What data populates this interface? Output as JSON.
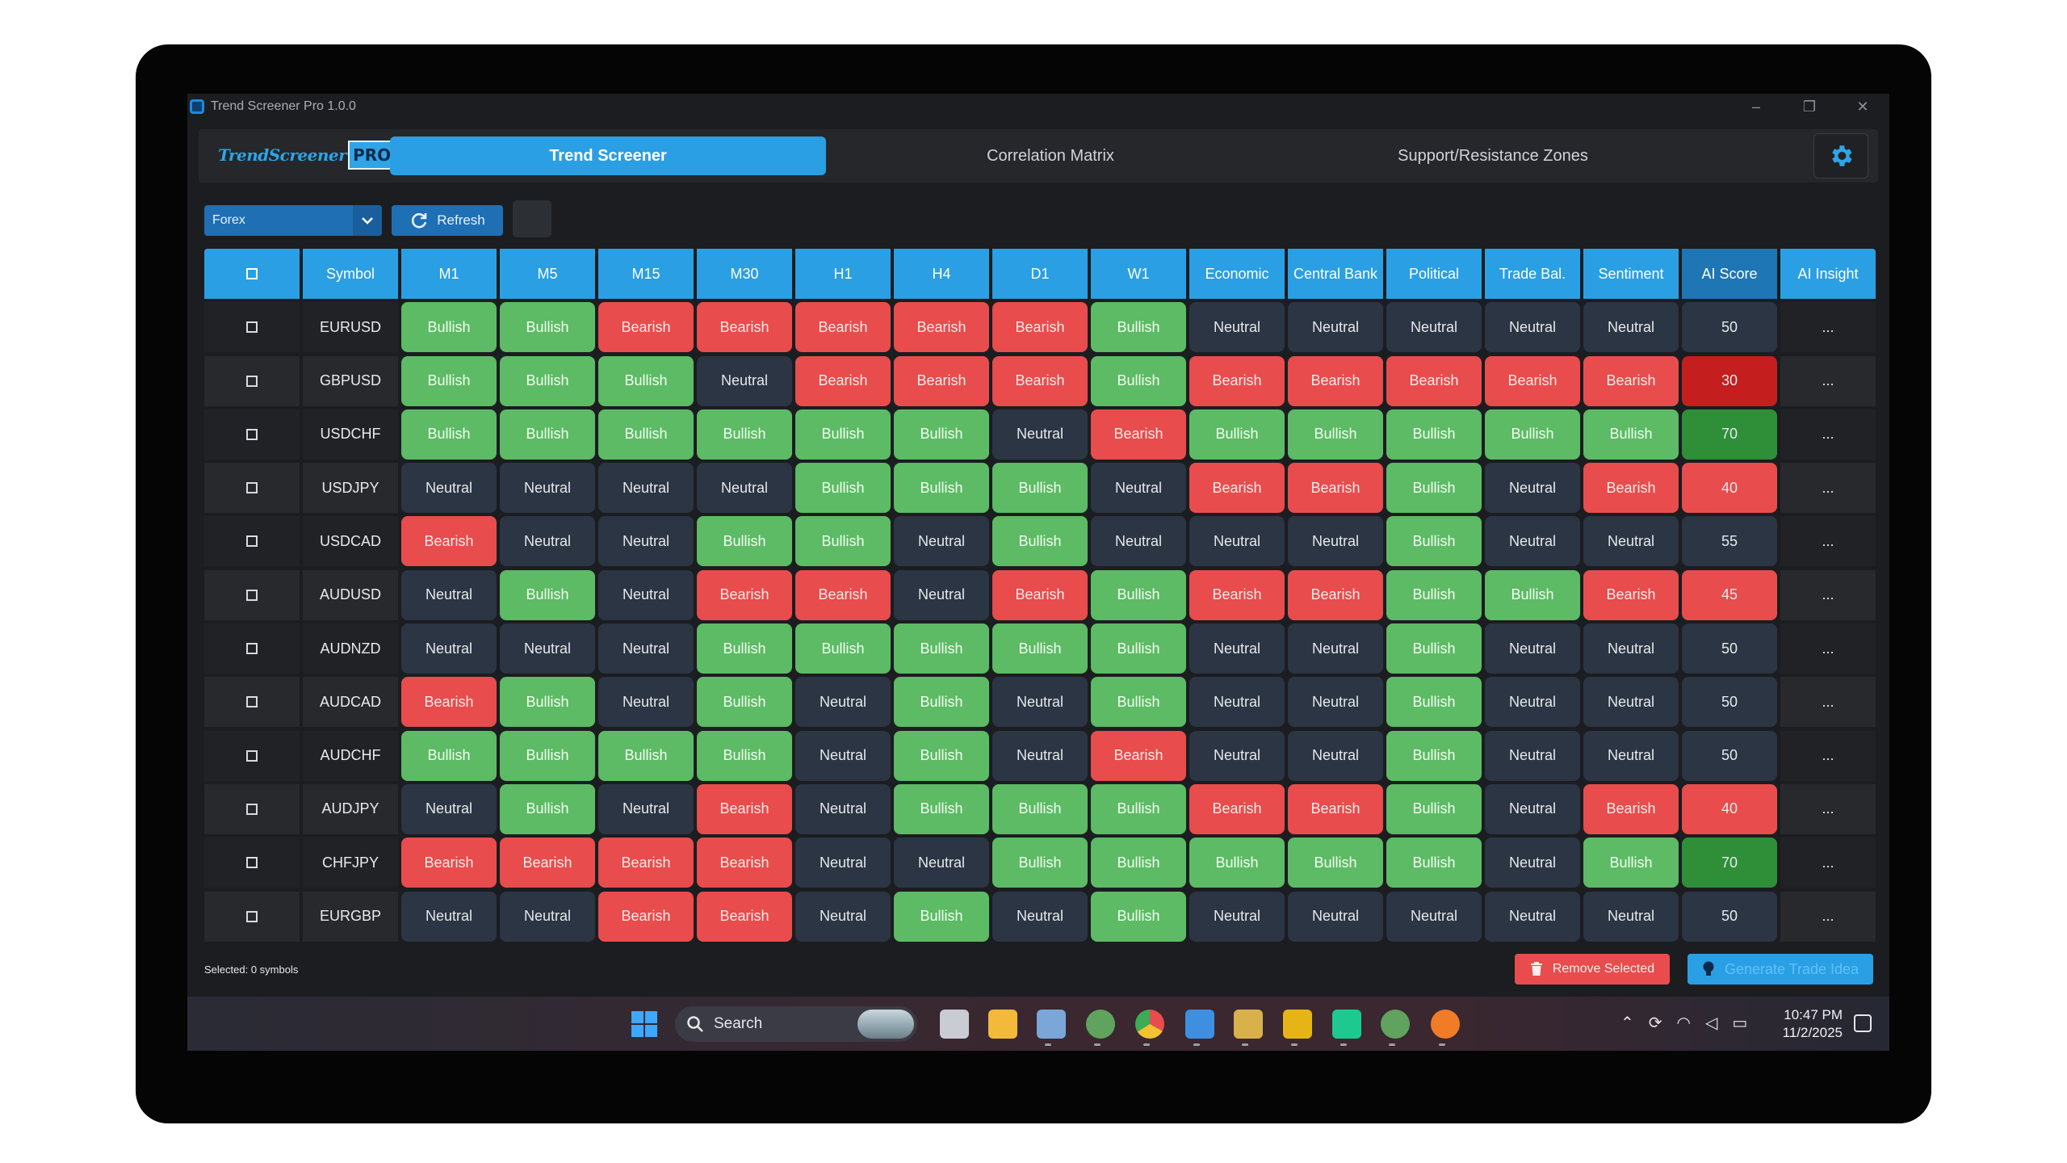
{
  "window": {
    "title": "Trend Screener Pro 1.0.0",
    "controls": {
      "minimize": "–",
      "maximize": "❐",
      "close": "✕"
    }
  },
  "header": {
    "logo_text": "TrendScreener",
    "logo_badge": "PRO",
    "tabs": [
      {
        "label": "Trend Screener",
        "active": true
      },
      {
        "label": "Correlation Matrix",
        "active": false
      },
      {
        "label": "Support/Resistance Zones",
        "active": false
      }
    ],
    "settings_icon": "gear-icon"
  },
  "toolbar": {
    "market_select": "Forex",
    "refresh_label": "Refresh"
  },
  "table": {
    "headers": [
      "Symbol",
      "M1",
      "M5",
      "M15",
      "M30",
      "H1",
      "H4",
      "D1",
      "W1",
      "Economic",
      "Central Bank",
      "Political",
      "Trade Bal.",
      "Sentiment",
      "AI Score",
      "AI Insight"
    ],
    "rows": [
      {
        "symbol": "EURUSD",
        "signals": [
          "Bullish",
          "Bullish",
          "Bearish",
          "Bearish",
          "Bearish",
          "Bearish",
          "Bearish",
          "Bullish",
          "Neutral",
          "Neutral",
          "Neutral",
          "Neutral",
          "Neutral"
        ],
        "score": "50",
        "insight": "..."
      },
      {
        "symbol": "GBPUSD",
        "signals": [
          "Bullish",
          "Bullish",
          "Bullish",
          "Neutral",
          "Bearish",
          "Bearish",
          "Bearish",
          "Bullish",
          "Bearish",
          "Bearish",
          "Bearish",
          "Bearish",
          "Bearish"
        ],
        "score": "30",
        "insight": "..."
      },
      {
        "symbol": "USDCHF",
        "signals": [
          "Bullish",
          "Bullish",
          "Bullish",
          "Bullish",
          "Bullish",
          "Bullish",
          "Neutral",
          "Bearish",
          "Bullish",
          "Bullish",
          "Bullish",
          "Bullish",
          "Bullish"
        ],
        "score": "70",
        "insight": "..."
      },
      {
        "symbol": "USDJPY",
        "signals": [
          "Neutral",
          "Neutral",
          "Neutral",
          "Neutral",
          "Bullish",
          "Bullish",
          "Bullish",
          "Neutral",
          "Bearish",
          "Bearish",
          "Bullish",
          "Neutral",
          "Bearish"
        ],
        "score": "40",
        "insight": "..."
      },
      {
        "symbol": "USDCAD",
        "signals": [
          "Bearish",
          "Neutral",
          "Neutral",
          "Bullish",
          "Bullish",
          "Neutral",
          "Bullish",
          "Neutral",
          "Neutral",
          "Neutral",
          "Bullish",
          "Neutral",
          "Neutral"
        ],
        "score": "55",
        "insight": "..."
      },
      {
        "symbol": "AUDUSD",
        "signals": [
          "Neutral",
          "Bullish",
          "Neutral",
          "Bearish",
          "Bearish",
          "Neutral",
          "Bearish",
          "Bullish",
          "Bearish",
          "Bearish",
          "Bullish",
          "Bullish",
          "Bearish"
        ],
        "score": "45",
        "insight": "..."
      },
      {
        "symbol": "AUDNZD",
        "signals": [
          "Neutral",
          "Neutral",
          "Neutral",
          "Bullish",
          "Bullish",
          "Bullish",
          "Bullish",
          "Bullish",
          "Neutral",
          "Neutral",
          "Bullish",
          "Neutral",
          "Neutral"
        ],
        "score": "50",
        "insight": "..."
      },
      {
        "symbol": "AUDCAD",
        "signals": [
          "Bearish",
          "Bullish",
          "Neutral",
          "Bullish",
          "Neutral",
          "Bullish",
          "Neutral",
          "Bullish",
          "Neutral",
          "Neutral",
          "Bullish",
          "Neutral",
          "Neutral"
        ],
        "score": "50",
        "insight": "..."
      },
      {
        "symbol": "AUDCHF",
        "signals": [
          "Bullish",
          "Bullish",
          "Bullish",
          "Bullish",
          "Neutral",
          "Bullish",
          "Neutral",
          "Bearish",
          "Neutral",
          "Neutral",
          "Bullish",
          "Neutral",
          "Neutral"
        ],
        "score": "50",
        "insight": "..."
      },
      {
        "symbol": "AUDJPY",
        "signals": [
          "Neutral",
          "Bullish",
          "Neutral",
          "Bearish",
          "Neutral",
          "Bullish",
          "Bullish",
          "Bullish",
          "Bearish",
          "Bearish",
          "Bullish",
          "Neutral",
          "Bearish"
        ],
        "score": "40",
        "insight": "..."
      },
      {
        "symbol": "CHFJPY",
        "signals": [
          "Bearish",
          "Bearish",
          "Bearish",
          "Bearish",
          "Neutral",
          "Neutral",
          "Bullish",
          "Bullish",
          "Bullish",
          "Bullish",
          "Bullish",
          "Neutral",
          "Bullish"
        ],
        "score": "70",
        "insight": "..."
      },
      {
        "symbol": "EURGBP",
        "signals": [
          "Neutral",
          "Neutral",
          "Bearish",
          "Bearish",
          "Neutral",
          "Bullish",
          "Neutral",
          "Bullish",
          "Neutral",
          "Neutral",
          "Neutral",
          "Neutral",
          "Neutral"
        ],
        "score": "50",
        "insight": "..."
      }
    ]
  },
  "footer": {
    "selected_text": "Selected: 0 symbols",
    "remove_label": "Remove Selected",
    "generate_label": "Generate Trade Idea"
  },
  "taskbar": {
    "search_label": "Search",
    "time": "10:47 PM",
    "date": "11/2/2025"
  },
  "colors": {
    "accent": "#2b9fe3",
    "bullish": "#5cbb64",
    "bearish": "#e84c4c",
    "neutral": "#2b3543",
    "score_high": "#2e8f38",
    "score_low": "#c41e1e"
  }
}
